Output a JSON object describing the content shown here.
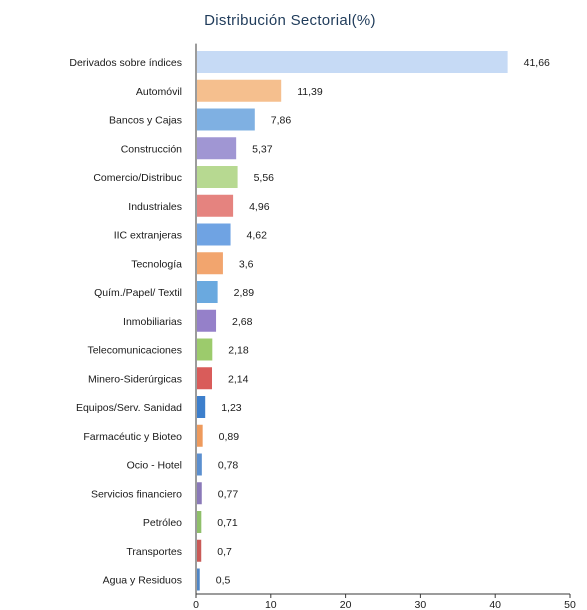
{
  "chart_data": {
    "type": "bar",
    "orientation": "horizontal",
    "title": "Distribución Sectorial(%)",
    "xlabel": "",
    "ylabel": "",
    "xlim": [
      0,
      50
    ],
    "x_ticks": [
      0,
      10,
      20,
      30,
      40,
      50
    ],
    "grid": false,
    "legend": "none",
    "categories": [
      "Derivados sobre índices",
      "Automóvil",
      "Bancos y Cajas",
      "Construcción",
      "Comercio/Distribuc",
      "Industriales",
      "IIC extranjeras",
      "Tecnología",
      "Quím./Papel/ Textil",
      "Inmobiliarias",
      "Telecomunicaciones",
      "Minero-Siderúrgicas",
      "Equipos/Serv. Sanidad",
      "Farmacéutic y Bioteo",
      "Ocio - Hotel",
      "Servicios financiero",
      "Petróleo",
      "Transportes",
      "Agua y Residuos"
    ],
    "values": [
      41.66,
      11.39,
      7.86,
      5.37,
      5.56,
      4.96,
      4.62,
      3.6,
      2.89,
      2.68,
      2.18,
      2.14,
      1.23,
      0.89,
      0.78,
      0.77,
      0.71,
      0.7,
      0.5
    ],
    "value_labels": [
      "41,66",
      "11,39",
      "7,86",
      "5,37",
      "5,56",
      "4,96",
      "4,62",
      "3,6",
      "2,89",
      "2,68",
      "2,18",
      "2,14",
      "1,23",
      "0,89",
      "0,78",
      "0,77",
      "0,71",
      "0,7",
      "0,5"
    ],
    "colors": [
      "#c6daf5",
      "#f5bf8e",
      "#7fb0e2",
      "#a096d3",
      "#b7d991",
      "#e5837f",
      "#6fa3e3",
      "#f2a56e",
      "#6aa9df",
      "#9580c9",
      "#9ccb6c",
      "#d95c5a",
      "#3d7fcc",
      "#ee9a5c",
      "#5b8fcf",
      "#8a79b8",
      "#8fbf6a",
      "#c95a57",
      "#4f86c6"
    ]
  }
}
